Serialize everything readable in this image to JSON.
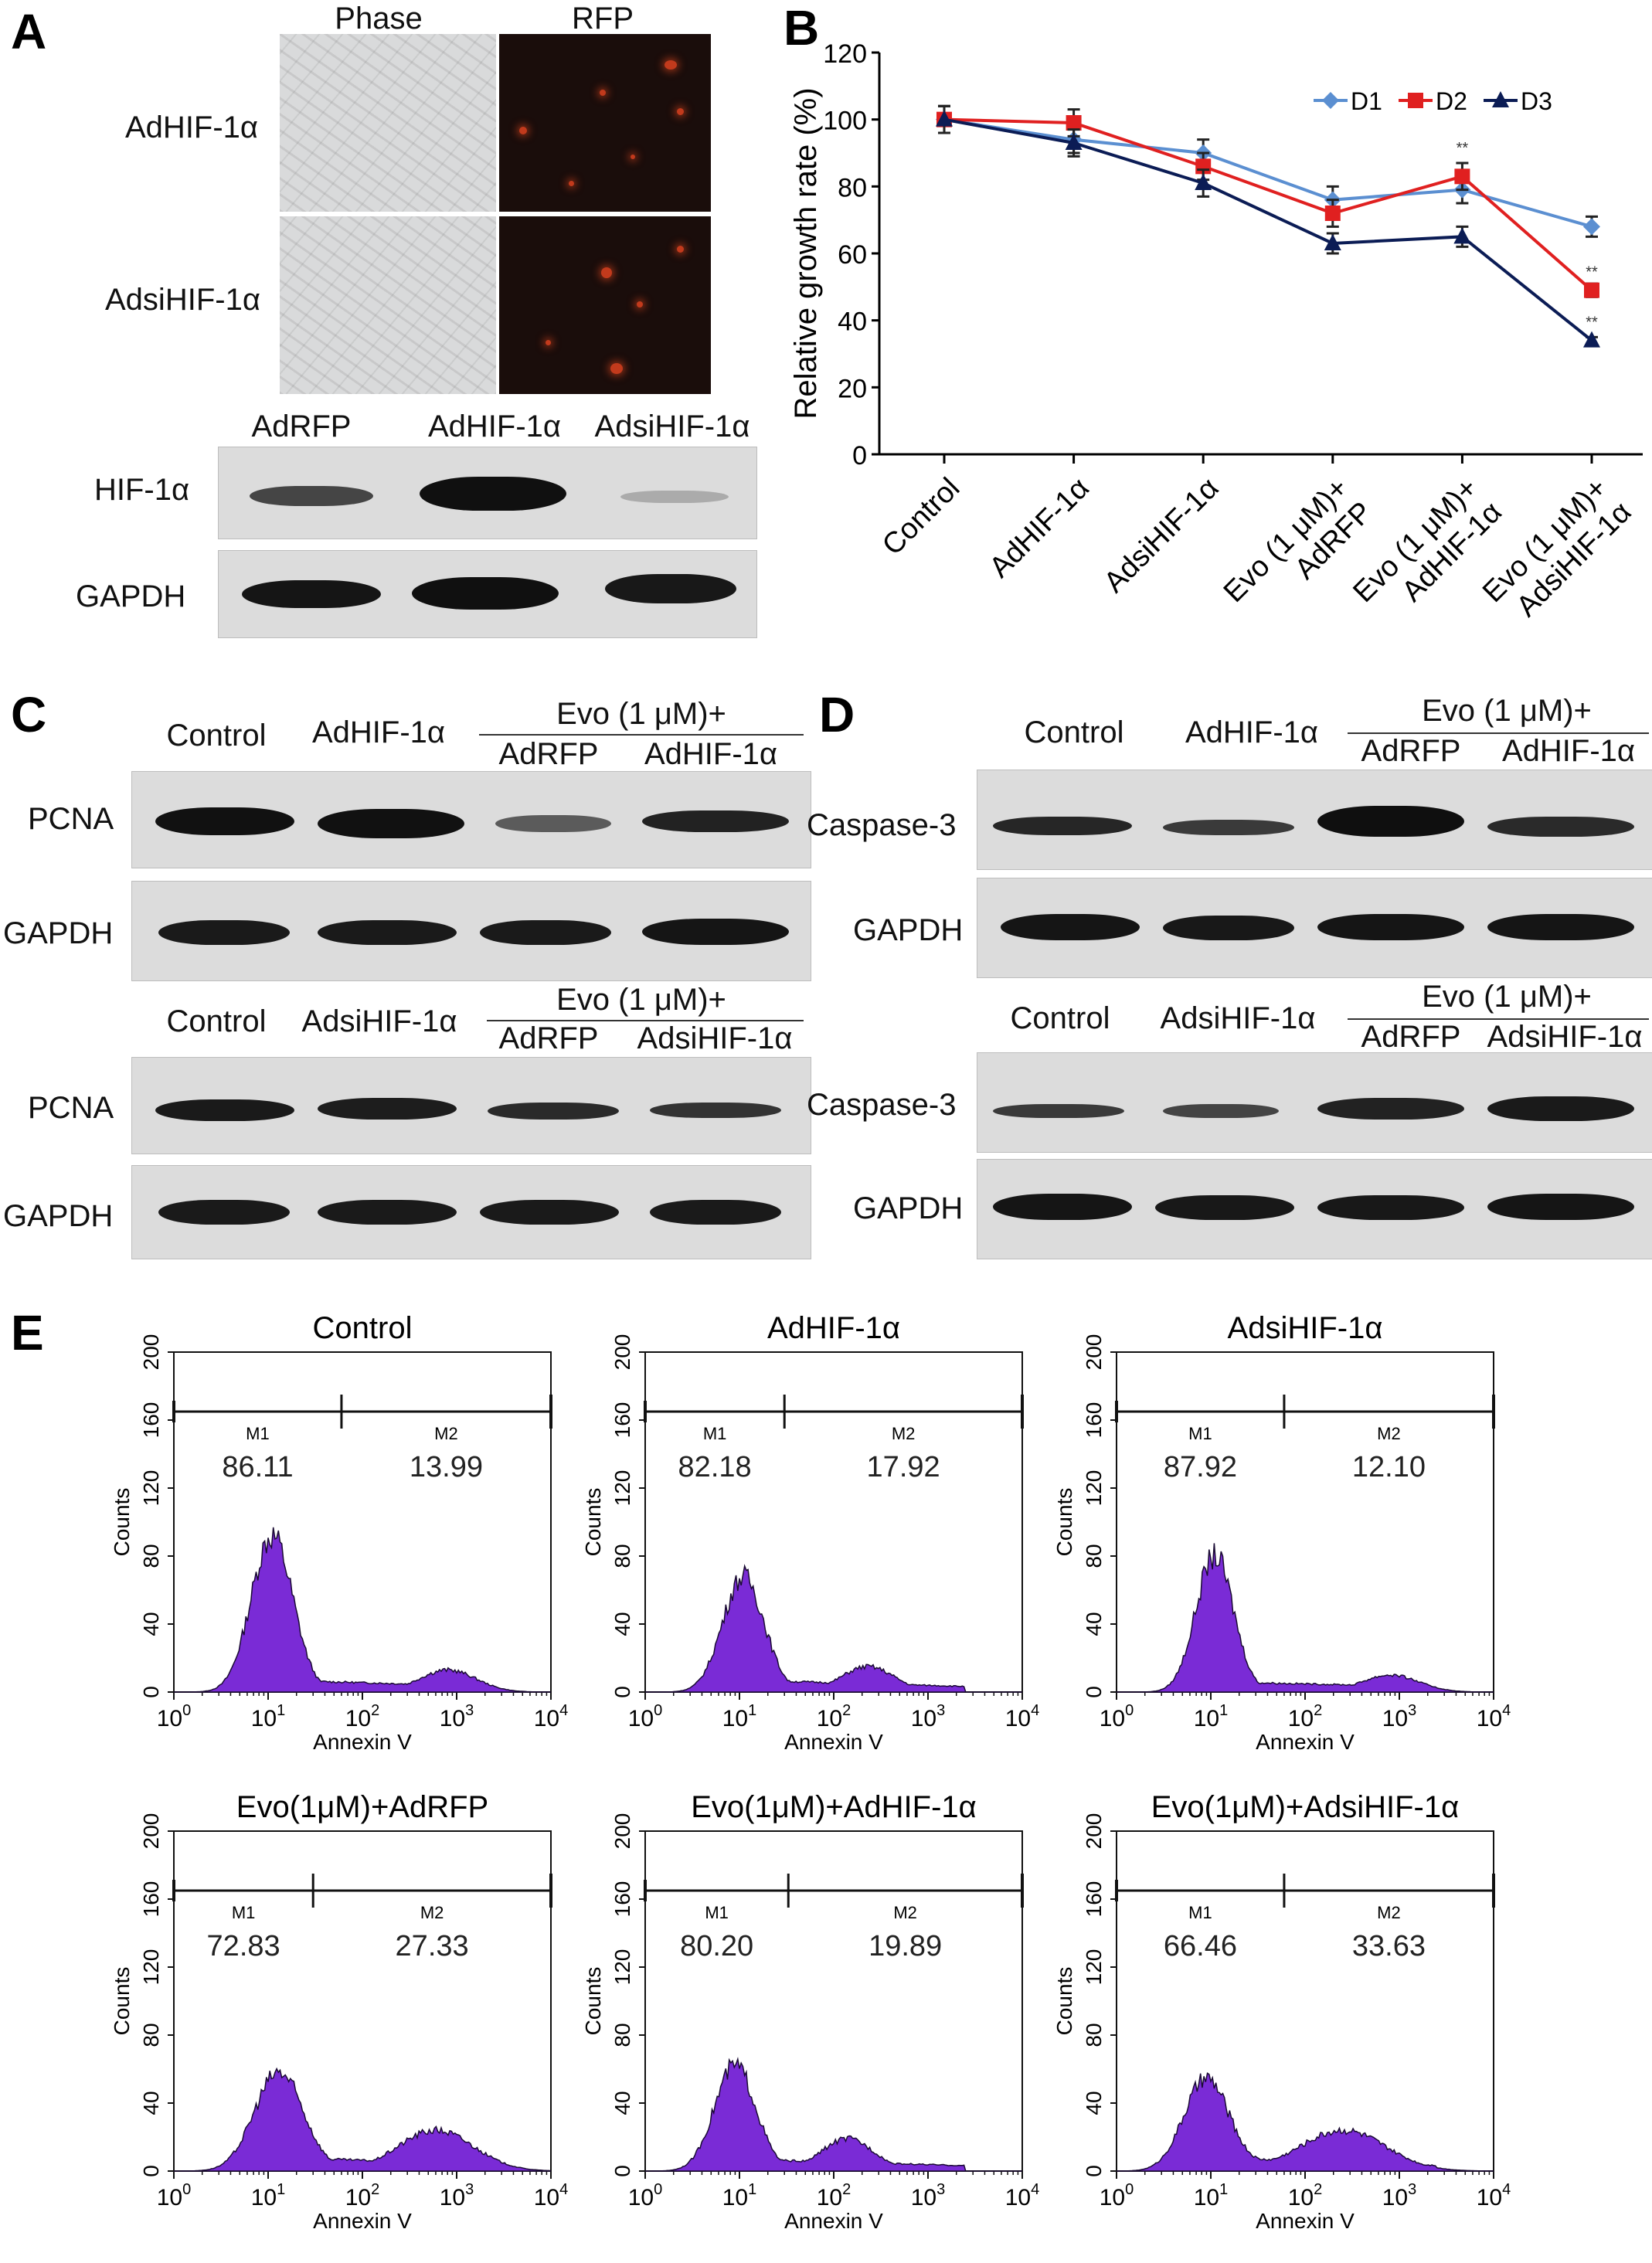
{
  "panels": {
    "A": {
      "letter": "A",
      "col_headers": [
        "Phase",
        "RFP"
      ],
      "row_labels": [
        "AdHIF-1α",
        "AdsiHIF-1α"
      ],
      "blot_lane_labels": [
        "AdRFP",
        "AdHIF-1α",
        "AdsiHIF-1α"
      ],
      "blot_rows": [
        "HIF-1α",
        "GAPDH"
      ]
    },
    "C": {
      "letter": "C",
      "top": {
        "lanes": [
          "Control",
          "AdHIF-1α"
        ],
        "group_header": "Evo (1 μM)+",
        "group_lanes": [
          "AdRFP",
          "AdHIF-1α"
        ],
        "rows": [
          "PCNA",
          "GAPDH"
        ]
      },
      "bottom": {
        "lanes": [
          "Control",
          "AdsiHIF-1α"
        ],
        "group_header": "Evo (1 μM)+",
        "group_lanes": [
          "AdRFP",
          "AdsiHIF-1α"
        ],
        "rows": [
          "PCNA",
          "GAPDH"
        ]
      }
    },
    "D": {
      "letter": "D",
      "top": {
        "lanes": [
          "Control",
          "AdHIF-1α"
        ],
        "group_header": "Evo (1 μM)+",
        "group_lanes": [
          "AdRFP",
          "AdHIF-1α"
        ],
        "rows": [
          "Caspase-3",
          "GAPDH"
        ]
      },
      "bottom": {
        "lanes": [
          "Control",
          "AdsiHIF-1α"
        ],
        "group_header": "Evo (1 μM)+",
        "group_lanes": [
          "AdRFP",
          "AdsiHIF-1α"
        ],
        "rows": [
          "Caspase-3",
          "GAPDH"
        ]
      }
    },
    "E": {
      "letter": "E"
    }
  },
  "chart_data": [
    {
      "panel": "B",
      "type": "line",
      "letter": "B",
      "categories": [
        "Control",
        "AdHIF-1α",
        "AdsiHIF-1α",
        "Evo (1 μM)+\nAdRFP",
        "Evo (1 μM)+\nAdHIF-1α",
        "Evo (1 μM)+\nAdsiHIF-1α"
      ],
      "series": [
        {
          "name": "D1",
          "values": [
            100,
            94,
            90,
            76,
            79,
            68
          ],
          "errors": [
            4,
            4,
            4,
            4,
            4,
            3
          ],
          "color": "#5b8fd1",
          "marker": "diamond"
        },
        {
          "name": "D2",
          "values": [
            100,
            99,
            86,
            72,
            83,
            49
          ],
          "errors": [
            4,
            4,
            4,
            4,
            4,
            2
          ],
          "color": "#e02020",
          "marker": "square"
        },
        {
          "name": "D3",
          "values": [
            100,
            93,
            81,
            63,
            65,
            34
          ],
          "errors": [
            4,
            4,
            4,
            3,
            3,
            1
          ],
          "color": "#0b1c55",
          "marker": "triangle"
        }
      ],
      "annotations": [
        {
          "category": 4,
          "text": "**",
          "y": 90
        },
        {
          "category": 5,
          "text": "**",
          "y": 53
        },
        {
          "category": 5,
          "text": "**",
          "y": 38
        }
      ],
      "ylabel": "Relative growth rate (%)",
      "ylim": [
        0,
        120
      ],
      "yticks": [
        0,
        20,
        40,
        60,
        80,
        100,
        120
      ],
      "legend_position": "top-right",
      "grid": false
    },
    {
      "panel": "E",
      "type": "area",
      "title": "Control",
      "xlabel": "Annexin V",
      "ylabel": "Counts",
      "xscale": "log",
      "xlim": [
        1,
        10000
      ],
      "ylim": [
        0,
        200
      ],
      "yticks": [
        0,
        40,
        80,
        120,
        160,
        200
      ],
      "gate_split": 60,
      "gate_labels": [
        "M1",
        "M2"
      ],
      "percentages": [
        "86.11",
        "13.99"
      ],
      "peaks": [
        {
          "x": 11,
          "height": 92,
          "width": 0.22
        },
        {
          "x": 800,
          "height": 13,
          "width": 0.3
        }
      ],
      "baseline": 5,
      "fill": "#7a2bd6"
    },
    {
      "panel": "E",
      "type": "area",
      "title": "AdHIF-1α",
      "xlabel": "Annexin V",
      "ylabel": "Counts",
      "xscale": "log",
      "xlim": [
        1,
        10000
      ],
      "ylim": [
        0,
        200
      ],
      "yticks": [
        0,
        40,
        80,
        120,
        160,
        200
      ],
      "gate_split": 30,
      "gate_labels": [
        "M1",
        "M2"
      ],
      "percentages": [
        "82.18",
        "17.92"
      ],
      "peaks": [
        {
          "x": 11,
          "height": 68,
          "width": 0.22
        },
        {
          "x": 230,
          "height": 15,
          "width": 0.28
        }
      ],
      "baseline": 5,
      "fill": "#7a2bd6"
    },
    {
      "panel": "E",
      "type": "area",
      "title": "AdsiHIF-1α",
      "xlabel": "Annexin V",
      "ylabel": "Counts",
      "xscale": "log",
      "xlim": [
        1,
        10000
      ],
      "ylim": [
        0,
        200
      ],
      "yticks": [
        0,
        40,
        80,
        120,
        160,
        200
      ],
      "gate_split": 60,
      "gate_labels": [
        "M1",
        "M2"
      ],
      "percentages": [
        "87.92",
        "12.10"
      ],
      "peaks": [
        {
          "x": 11,
          "height": 80,
          "width": 0.2
        },
        {
          "x": 800,
          "height": 10,
          "width": 0.3
        }
      ],
      "baseline": 4,
      "fill": "#7a2bd6"
    },
    {
      "panel": "E",
      "type": "area",
      "title": "Evo(1μM)+AdRFP",
      "xlabel": "Annexin V",
      "ylabel": "Counts",
      "xscale": "log",
      "xlim": [
        1,
        10000
      ],
      "ylim": [
        0,
        200
      ],
      "yticks": [
        0,
        40,
        80,
        120,
        160,
        200
      ],
      "gate_split": 30,
      "gate_labels": [
        "M1",
        "M2"
      ],
      "percentages": [
        "72.83",
        "27.33"
      ],
      "peaks": [
        {
          "x": 13,
          "height": 58,
          "width": 0.26
        },
        {
          "x": 600,
          "height": 24,
          "width": 0.4
        }
      ],
      "baseline": 6,
      "fill": "#7a2bd6"
    },
    {
      "panel": "E",
      "type": "area",
      "title": "Evo(1μM)+AdHIF-1α",
      "xlabel": "Annexin V",
      "ylabel": "Counts",
      "xscale": "log",
      "xlim": [
        1,
        10000
      ],
      "ylim": [
        0,
        200
      ],
      "yticks": [
        0,
        40,
        80,
        120,
        160,
        200
      ],
      "gate_split": 33,
      "gate_labels": [
        "M1",
        "M2"
      ],
      "percentages": [
        "80.20",
        "19.89"
      ],
      "peaks": [
        {
          "x": 9,
          "height": 62,
          "width": 0.22
        },
        {
          "x": 140,
          "height": 19,
          "width": 0.28
        }
      ],
      "baseline": 5,
      "fill": "#7a2bd6"
    },
    {
      "panel": "E",
      "type": "area",
      "title": "Evo(1μM)+AdsiHIF-1α",
      "xlabel": "Annexin V",
      "ylabel": "Counts",
      "xscale": "log",
      "xlim": [
        1,
        10000
      ],
      "ylim": [
        0,
        200
      ],
      "yticks": [
        0,
        40,
        80,
        120,
        160,
        200
      ],
      "gate_split": 60,
      "gate_labels": [
        "M1",
        "M2"
      ],
      "percentages": [
        "66.46",
        "33.63"
      ],
      "peaks": [
        {
          "x": 9,
          "height": 54,
          "width": 0.24
        },
        {
          "x": 250,
          "height": 24,
          "width": 0.45
        }
      ],
      "baseline": 6,
      "fill": "#7a2bd6"
    }
  ]
}
